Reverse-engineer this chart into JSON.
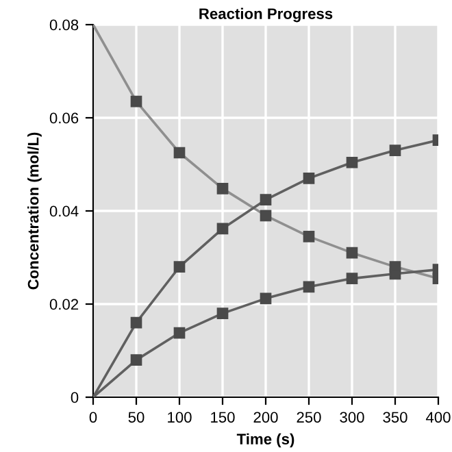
{
  "chart_data": {
    "type": "line",
    "title": "Reaction Progress",
    "xlabel": "Time (s)",
    "ylabel": "Concentration (mol/L)",
    "x": [
      0,
      50,
      100,
      150,
      200,
      250,
      300,
      350,
      400
    ],
    "series": [
      {
        "color": "#8f8f8f",
        "values": [
          0.08,
          0.0635,
          0.0525,
          0.0448,
          0.039,
          0.0345,
          0.031,
          0.028,
          0.0255
        ]
      },
      {
        "color": "#606060",
        "values": [
          0,
          0.016,
          0.028,
          0.0362,
          0.0424,
          0.047,
          0.0504,
          0.053,
          0.0552
        ]
      },
      {
        "color": "#606060",
        "values": [
          0,
          0.008,
          0.0138,
          0.018,
          0.0212,
          0.0237,
          0.0255,
          0.0265,
          0.0274
        ]
      }
    ],
    "xlim": [
      0,
      400
    ],
    "ylim": [
      0,
      0.08
    ],
    "xticks": [
      0,
      50,
      100,
      150,
      200,
      250,
      300,
      350,
      400
    ],
    "yticks": [
      0,
      0.02,
      0.04,
      0.06,
      0.08
    ],
    "grid": true,
    "marker": "square",
    "line_style": "solid"
  }
}
